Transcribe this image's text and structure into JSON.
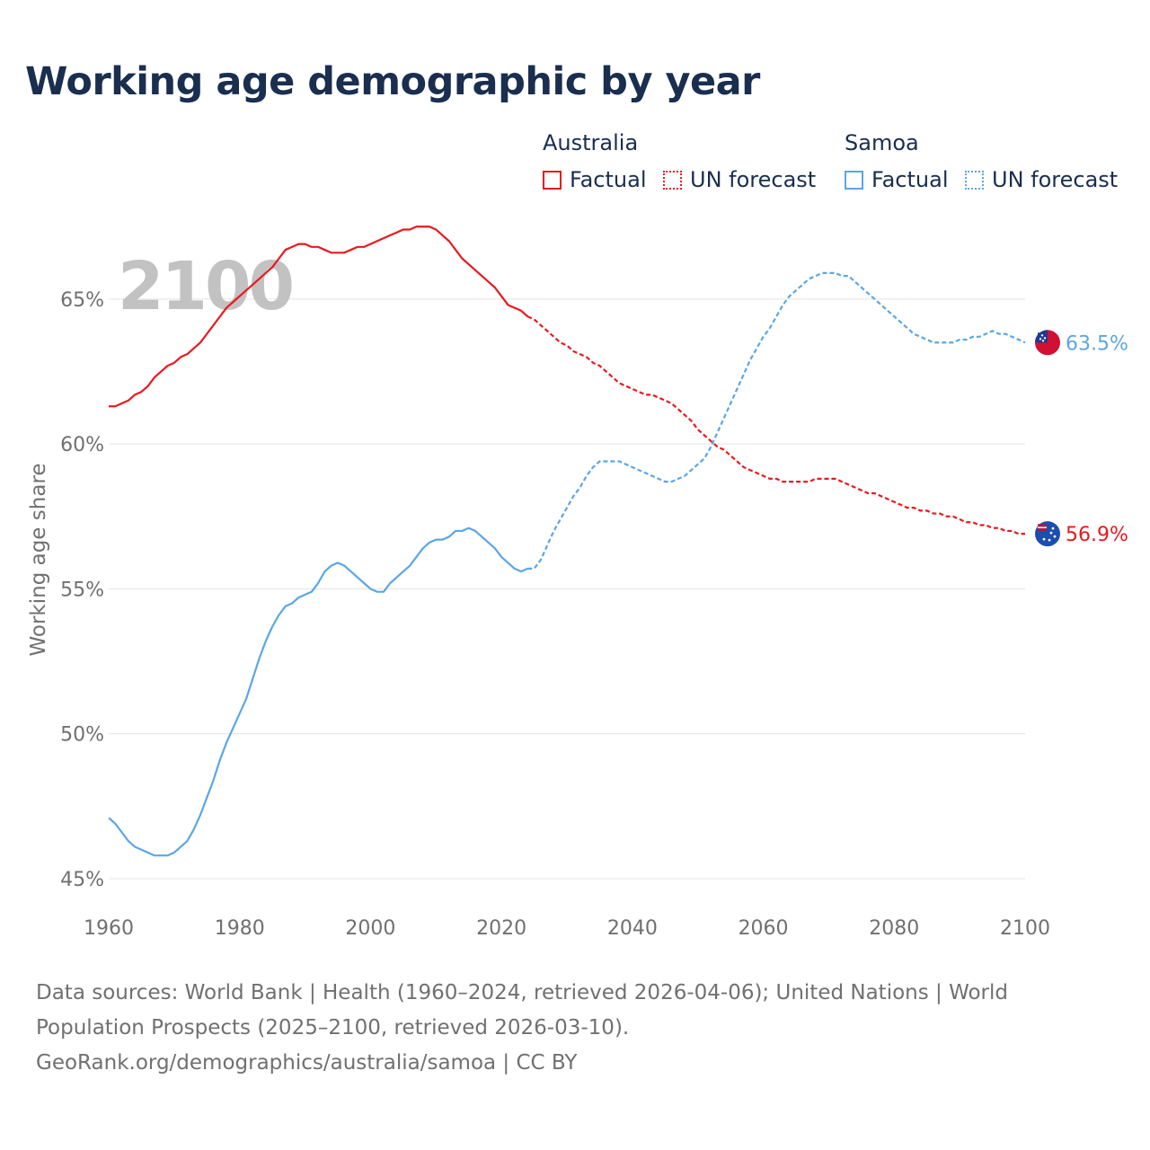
{
  "title": "Working age demographic by year",
  "legend": {
    "groups": [
      {
        "name": "Australia",
        "factual_label": "Factual",
        "forecast_label": "UN forecast",
        "color": "#e8191e"
      },
      {
        "name": "Samoa",
        "factual_label": "Factual",
        "forecast_label": "UN forecast",
        "color": "#5ba6e6"
      }
    ]
  },
  "source": {
    "line1": "Data sources: World Bank | Health (1960–2024, retrieved 2026-04-06); United Nations | World",
    "line2": "Population Prospects (2025–2100, retrieved 2026-03-10).",
    "line3": "GeoRank.org/demographics/australia/samoa | CC BY"
  },
  "chart_data": {
    "type": "line",
    "title": "Working age demographic by year",
    "year_watermark": "2100",
    "xlabel": "",
    "ylabel": "Working age share",
    "xlim": [
      1960,
      2100
    ],
    "ylim": [
      45,
      68.5
    ],
    "xticks": [
      1960,
      1980,
      2000,
      2020,
      2040,
      2060,
      2080,
      2100
    ],
    "yticks": [
      45,
      50,
      55,
      60,
      65
    ],
    "ytick_labels": [
      "45%",
      "50%",
      "55%",
      "60%",
      "65%"
    ],
    "forecast_start": 2024,
    "series": [
      {
        "name": "Australia",
        "color": "#e8191e",
        "end_label": "56.9%",
        "points": [
          [
            1960,
            61.3
          ],
          [
            1961,
            61.3
          ],
          [
            1962,
            61.4
          ],
          [
            1963,
            61.5
          ],
          [
            1964,
            61.7
          ],
          [
            1965,
            61.8
          ],
          [
            1966,
            62.0
          ],
          [
            1967,
            62.3
          ],
          [
            1968,
            62.5
          ],
          [
            1969,
            62.7
          ],
          [
            1970,
            62.8
          ],
          [
            1971,
            63.0
          ],
          [
            1972,
            63.1
          ],
          [
            1973,
            63.3
          ],
          [
            1974,
            63.5
          ],
          [
            1975,
            63.8
          ],
          [
            1976,
            64.1
          ],
          [
            1977,
            64.4
          ],
          [
            1978,
            64.7
          ],
          [
            1979,
            64.9
          ],
          [
            1980,
            65.1
          ],
          [
            1981,
            65.3
          ],
          [
            1982,
            65.5
          ],
          [
            1983,
            65.7
          ],
          [
            1984,
            65.9
          ],
          [
            1985,
            66.1
          ],
          [
            1986,
            66.4
          ],
          [
            1987,
            66.7
          ],
          [
            1988,
            66.8
          ],
          [
            1989,
            66.9
          ],
          [
            1990,
            66.9
          ],
          [
            1991,
            66.8
          ],
          [
            1992,
            66.8
          ],
          [
            1993,
            66.7
          ],
          [
            1994,
            66.6
          ],
          [
            1995,
            66.6
          ],
          [
            1996,
            66.6
          ],
          [
            1997,
            66.7
          ],
          [
            1998,
            66.8
          ],
          [
            1999,
            66.8
          ],
          [
            2000,
            66.9
          ],
          [
            2001,
            67.0
          ],
          [
            2002,
            67.1
          ],
          [
            2003,
            67.2
          ],
          [
            2004,
            67.3
          ],
          [
            2005,
            67.4
          ],
          [
            2006,
            67.4
          ],
          [
            2007,
            67.5
          ],
          [
            2008,
            67.5
          ],
          [
            2009,
            67.5
          ],
          [
            2010,
            67.4
          ],
          [
            2011,
            67.2
          ],
          [
            2012,
            67.0
          ],
          [
            2013,
            66.7
          ],
          [
            2014,
            66.4
          ],
          [
            2015,
            66.2
          ],
          [
            2016,
            66.0
          ],
          [
            2017,
            65.8
          ],
          [
            2018,
            65.6
          ],
          [
            2019,
            65.4
          ],
          [
            2020,
            65.1
          ],
          [
            2021,
            64.8
          ],
          [
            2022,
            64.7
          ],
          [
            2023,
            64.6
          ],
          [
            2024,
            64.4
          ],
          [
            2025,
            64.3
          ],
          [
            2026,
            64.1
          ],
          [
            2027,
            63.9
          ],
          [
            2028,
            63.7
          ],
          [
            2029,
            63.5
          ],
          [
            2030,
            63.4
          ],
          [
            2031,
            63.2
          ],
          [
            2032,
            63.1
          ],
          [
            2033,
            63.0
          ],
          [
            2034,
            62.8
          ],
          [
            2035,
            62.7
          ],
          [
            2036,
            62.5
          ],
          [
            2037,
            62.3
          ],
          [
            2038,
            62.1
          ],
          [
            2039,
            62.0
          ],
          [
            2040,
            61.9
          ],
          [
            2041,
            61.8
          ],
          [
            2042,
            61.7
          ],
          [
            2043,
            61.7
          ],
          [
            2044,
            61.6
          ],
          [
            2045,
            61.5
          ],
          [
            2046,
            61.4
          ],
          [
            2047,
            61.2
          ],
          [
            2048,
            61.0
          ],
          [
            2049,
            60.8
          ],
          [
            2050,
            60.5
          ],
          [
            2051,
            60.3
          ],
          [
            2052,
            60.1
          ],
          [
            2053,
            59.9
          ],
          [
            2054,
            59.8
          ],
          [
            2055,
            59.6
          ],
          [
            2056,
            59.4
          ],
          [
            2057,
            59.2
          ],
          [
            2058,
            59.1
          ],
          [
            2059,
            59.0
          ],
          [
            2060,
            58.9
          ],
          [
            2061,
            58.8
          ],
          [
            2062,
            58.8
          ],
          [
            2063,
            58.7
          ],
          [
            2064,
            58.7
          ],
          [
            2065,
            58.7
          ],
          [
            2066,
            58.7
          ],
          [
            2067,
            58.7
          ],
          [
            2068,
            58.8
          ],
          [
            2069,
            58.8
          ],
          [
            2070,
            58.8
          ],
          [
            2071,
            58.8
          ],
          [
            2072,
            58.7
          ],
          [
            2073,
            58.6
          ],
          [
            2074,
            58.5
          ],
          [
            2075,
            58.4
          ],
          [
            2076,
            58.3
          ],
          [
            2077,
            58.3
          ],
          [
            2078,
            58.2
          ],
          [
            2079,
            58.1
          ],
          [
            2080,
            58.0
          ],
          [
            2081,
            57.9
          ],
          [
            2082,
            57.8
          ],
          [
            2083,
            57.8
          ],
          [
            2084,
            57.7
          ],
          [
            2085,
            57.7
          ],
          [
            2086,
            57.6
          ],
          [
            2087,
            57.6
          ],
          [
            2088,
            57.5
          ],
          [
            2089,
            57.5
          ],
          [
            2090,
            57.4
          ],
          [
            2091,
            57.3
          ],
          [
            2092,
            57.3
          ],
          [
            2093,
            57.2
          ],
          [
            2094,
            57.2
          ],
          [
            2095,
            57.1
          ],
          [
            2096,
            57.1
          ],
          [
            2097,
            57.0
          ],
          [
            2098,
            57.0
          ],
          [
            2099,
            56.9
          ],
          [
            2100,
            56.9
          ]
        ]
      },
      {
        "name": "Samoa",
        "color": "#5ba6e6",
        "end_label": "63.5%",
        "points": [
          [
            1960,
            47.1
          ],
          [
            1961,
            46.9
          ],
          [
            1962,
            46.6
          ],
          [
            1963,
            46.3
          ],
          [
            1964,
            46.1
          ],
          [
            1965,
            46.0
          ],
          [
            1966,
            45.9
          ],
          [
            1967,
            45.8
          ],
          [
            1968,
            45.8
          ],
          [
            1969,
            45.8
          ],
          [
            1970,
            45.9
          ],
          [
            1971,
            46.1
          ],
          [
            1972,
            46.3
          ],
          [
            1973,
            46.7
          ],
          [
            1974,
            47.2
          ],
          [
            1975,
            47.8
          ],
          [
            1976,
            48.4
          ],
          [
            1977,
            49.1
          ],
          [
            1978,
            49.7
          ],
          [
            1979,
            50.2
          ],
          [
            1980,
            50.7
          ],
          [
            1981,
            51.2
          ],
          [
            1982,
            51.9
          ],
          [
            1983,
            52.6
          ],
          [
            1984,
            53.2
          ],
          [
            1985,
            53.7
          ],
          [
            1986,
            54.1
          ],
          [
            1987,
            54.4
          ],
          [
            1988,
            54.5
          ],
          [
            1989,
            54.7
          ],
          [
            1990,
            54.8
          ],
          [
            1991,
            54.9
          ],
          [
            1992,
            55.2
          ],
          [
            1993,
            55.6
          ],
          [
            1994,
            55.8
          ],
          [
            1995,
            55.9
          ],
          [
            1996,
            55.8
          ],
          [
            1997,
            55.6
          ],
          [
            1998,
            55.4
          ],
          [
            1999,
            55.2
          ],
          [
            2000,
            55.0
          ],
          [
            2001,
            54.9
          ],
          [
            2002,
            54.9
          ],
          [
            2003,
            55.2
          ],
          [
            2004,
            55.4
          ],
          [
            2005,
            55.6
          ],
          [
            2006,
            55.8
          ],
          [
            2007,
            56.1
          ],
          [
            2008,
            56.4
          ],
          [
            2009,
            56.6
          ],
          [
            2010,
            56.7
          ],
          [
            2011,
            56.7
          ],
          [
            2012,
            56.8
          ],
          [
            2013,
            57.0
          ],
          [
            2014,
            57.0
          ],
          [
            2015,
            57.1
          ],
          [
            2016,
            57.0
          ],
          [
            2017,
            56.8
          ],
          [
            2018,
            56.6
          ],
          [
            2019,
            56.4
          ],
          [
            2020,
            56.1
          ],
          [
            2021,
            55.9
          ],
          [
            2022,
            55.7
          ],
          [
            2023,
            55.6
          ],
          [
            2024,
            55.7
          ],
          [
            2025,
            55.7
          ],
          [
            2026,
            56.0
          ],
          [
            2027,
            56.5
          ],
          [
            2028,
            57.0
          ],
          [
            2029,
            57.4
          ],
          [
            2030,
            57.8
          ],
          [
            2031,
            58.2
          ],
          [
            2032,
            58.5
          ],
          [
            2033,
            58.9
          ],
          [
            2034,
            59.2
          ],
          [
            2035,
            59.4
          ],
          [
            2036,
            59.4
          ],
          [
            2037,
            59.4
          ],
          [
            2038,
            59.4
          ],
          [
            2039,
            59.3
          ],
          [
            2040,
            59.2
          ],
          [
            2041,
            59.1
          ],
          [
            2042,
            59.0
          ],
          [
            2043,
            58.9
          ],
          [
            2044,
            58.8
          ],
          [
            2045,
            58.7
          ],
          [
            2046,
            58.7
          ],
          [
            2047,
            58.8
          ],
          [
            2048,
            58.9
          ],
          [
            2049,
            59.1
          ],
          [
            2050,
            59.3
          ],
          [
            2051,
            59.5
          ],
          [
            2052,
            59.9
          ],
          [
            2053,
            60.4
          ],
          [
            2054,
            60.9
          ],
          [
            2055,
            61.4
          ],
          [
            2056,
            61.9
          ],
          [
            2057,
            62.4
          ],
          [
            2058,
            62.9
          ],
          [
            2059,
            63.3
          ],
          [
            2060,
            63.7
          ],
          [
            2061,
            64.0
          ],
          [
            2062,
            64.4
          ],
          [
            2063,
            64.8
          ],
          [
            2064,
            65.1
          ],
          [
            2065,
            65.3
          ],
          [
            2066,
            65.5
          ],
          [
            2067,
            65.7
          ],
          [
            2068,
            65.8
          ],
          [
            2069,
            65.9
          ],
          [
            2070,
            65.9
          ],
          [
            2071,
            65.9
          ],
          [
            2072,
            65.8
          ],
          [
            2073,
            65.8
          ],
          [
            2074,
            65.6
          ],
          [
            2075,
            65.4
          ],
          [
            2076,
            65.2
          ],
          [
            2077,
            65.0
          ],
          [
            2078,
            64.8
          ],
          [
            2079,
            64.6
          ],
          [
            2080,
            64.4
          ],
          [
            2081,
            64.2
          ],
          [
            2082,
            64.0
          ],
          [
            2083,
            63.8
          ],
          [
            2084,
            63.7
          ],
          [
            2085,
            63.6
          ],
          [
            2086,
            63.5
          ],
          [
            2087,
            63.5
          ],
          [
            2088,
            63.5
          ],
          [
            2089,
            63.5
          ],
          [
            2090,
            63.6
          ],
          [
            2091,
            63.6
          ],
          [
            2092,
            63.7
          ],
          [
            2093,
            63.7
          ],
          [
            2094,
            63.8
          ],
          [
            2095,
            63.9
          ],
          [
            2096,
            63.8
          ],
          [
            2097,
            63.8
          ],
          [
            2098,
            63.7
          ],
          [
            2099,
            63.6
          ],
          [
            2100,
            63.5
          ]
        ]
      }
    ]
  }
}
